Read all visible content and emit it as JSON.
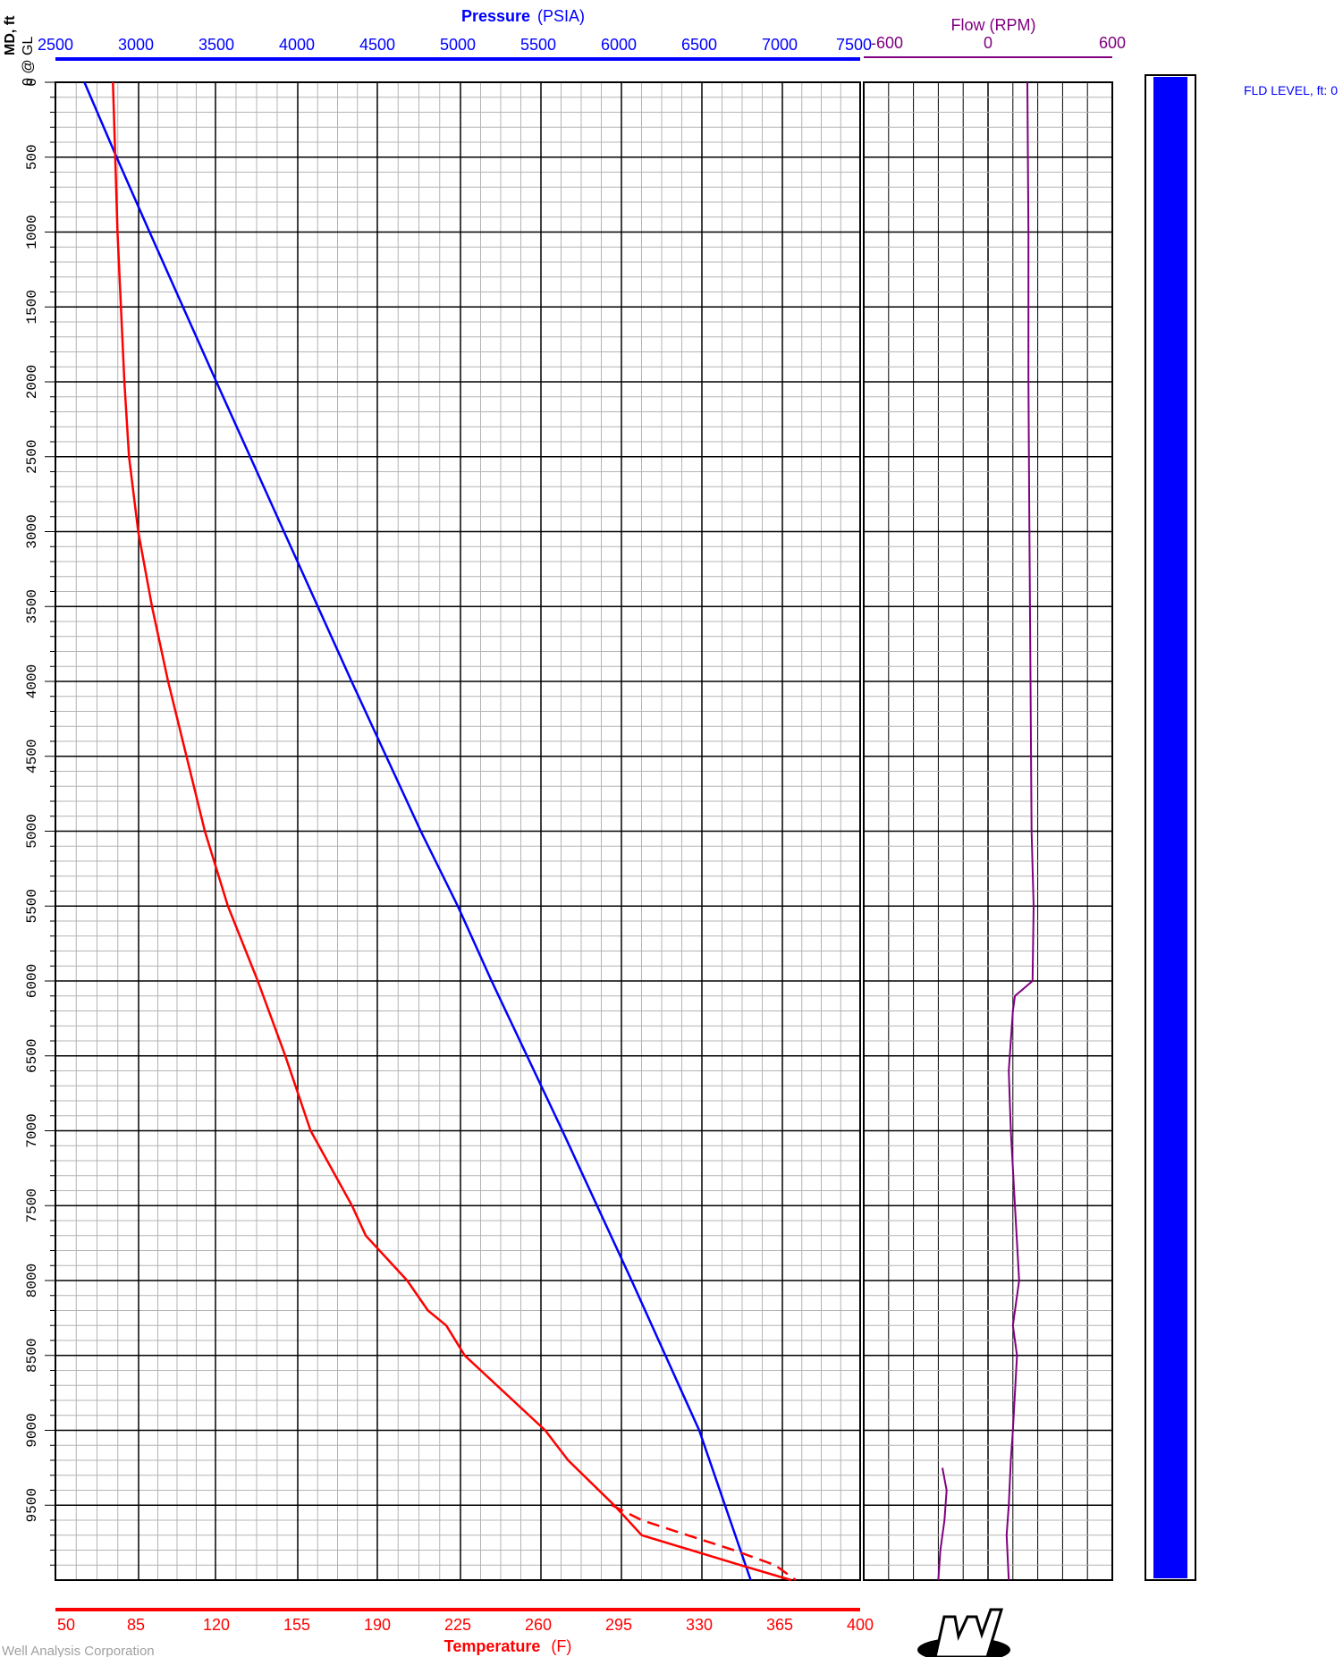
{
  "depth_axis": {
    "label": "MD, ft",
    "sublabel": "0 @ GL",
    "ticks": [
      "0",
      "500",
      "1000",
      "1500",
      "2000",
      "2500",
      "3000",
      "3500",
      "4000",
      "4500",
      "5000",
      "5500",
      "6000",
      "6500",
      "7000",
      "7500",
      "8000",
      "8500",
      "9000",
      "9500"
    ],
    "range": [
      0,
      10000
    ]
  },
  "pressure_axis": {
    "label": "Pressure",
    "unit": "(PSIA)",
    "ticks": [
      "2500",
      "3000",
      "3500",
      "4000",
      "4500",
      "5000",
      "5500",
      "6000",
      "6500",
      "7000",
      "7500"
    ],
    "range": [
      2500,
      7500
    ],
    "color": "#0000ff"
  },
  "temperature_axis": {
    "label": "Temperature",
    "unit": "(F)",
    "ticks": [
      "50",
      "85",
      "120",
      "155",
      "190",
      "225",
      "260",
      "295",
      "330",
      "365",
      "400"
    ],
    "range": [
      50,
      400
    ],
    "color": "#ff0000"
  },
  "flow_axis": {
    "label": "Flow (RPM)",
    "ticks": [
      "-600",
      "0",
      "600"
    ],
    "range": [
      -600,
      600
    ],
    "color": "#800080"
  },
  "fluid_level": {
    "label": "FLD LEVEL, ft: 0",
    "color": "#0000ff"
  },
  "footer": {
    "company": "Well Analysis Corporation"
  },
  "chart_data": {
    "type": "line",
    "x_axis_top": "Pressure (PSIA)",
    "x_axis_bottom": "Temperature (F)",
    "y_axis": "MD, ft",
    "ylim": [
      0,
      10000
    ],
    "series": [
      {
        "name": "Pressure",
        "unit": "PSIA",
        "color": "#0000ff",
        "style": "solid",
        "depth": [
          0,
          500,
          1000,
          2000,
          3000,
          4000,
          5000,
          5500,
          6000,
          7000,
          8000,
          9000,
          10000
        ],
        "values": [
          2680,
          2880,
          3085,
          3500,
          3920,
          4340,
          4770,
          5000,
          5210,
          5650,
          6080,
          6500,
          6820
        ]
      },
      {
        "name": "Temperature (down)",
        "unit": "F",
        "color": "#ff0000",
        "style": "solid",
        "depth": [
          0,
          500,
          1000,
          2000,
          2500,
          3000,
          3500,
          4000,
          4500,
          5000,
          5500,
          6000,
          6500,
          7000,
          7500,
          7700,
          8000,
          8200,
          8300,
          8500,
          9000,
          9200,
          9500,
          9700,
          9900,
          10000
        ],
        "values": [
          75,
          76,
          77,
          80,
          82,
          86,
          92,
          99,
          107,
          115,
          125,
          138,
          150,
          161,
          179,
          185,
          203,
          212,
          220,
          228,
          263,
          273,
          293,
          305,
          348,
          370
        ]
      },
      {
        "name": "Temperature (up)",
        "unit": "F",
        "color": "#ff0000",
        "style": "dashed",
        "depth": [
          9500,
          9600,
          9700,
          9800,
          9900,
          10000
        ],
        "values": [
          292,
          305,
          325,
          345,
          363,
          372
        ]
      },
      {
        "name": "Flow",
        "unit": "RPM",
        "color": "#800080",
        "style": "solid",
        "depth": [
          0,
          1000,
          2000,
          3000,
          4000,
          5000,
          5500,
          6000,
          6100,
          6200,
          6400,
          6600,
          7000,
          7500,
          8000,
          8300,
          8500,
          9000,
          9200,
          9500,
          9700,
          10000
        ],
        "values": [
          190,
          195,
          195,
          200,
          205,
          210,
          220,
          215,
          130,
          120,
          110,
          100,
          110,
          130,
          150,
          120,
          140,
          120,
          110,
          100,
          90,
          100
        ]
      },
      {
        "name": "Flow (secondary)",
        "unit": "RPM",
        "color": "#800080",
        "style": "solid",
        "depth": [
          9250,
          9400,
          9600,
          9800,
          10000
        ],
        "values": [
          -220,
          -200,
          -210,
          -230,
          -240
        ]
      }
    ]
  }
}
